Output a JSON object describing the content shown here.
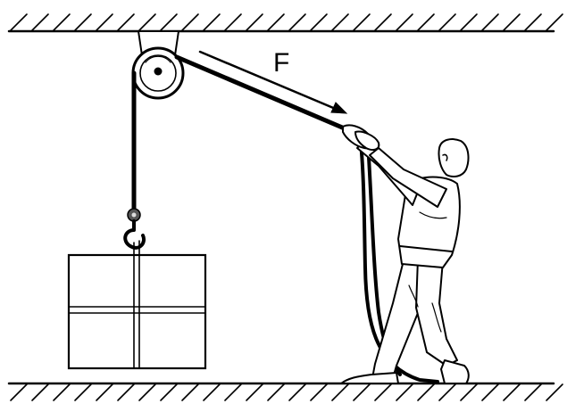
{
  "diagram": {
    "force_label": "F",
    "colors": {
      "ink": "#000000",
      "background": "#ffffff"
    }
  }
}
